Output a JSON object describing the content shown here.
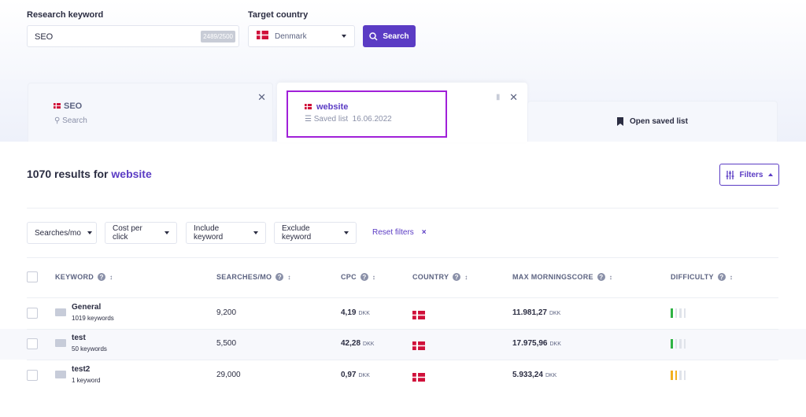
{
  "search": {
    "keyword_label": "Research keyword",
    "keyword_value": "SEO",
    "counter": "2489/2500",
    "country_label": "Target country",
    "country_value": "Denmark",
    "button": "Search"
  },
  "tabs": [
    {
      "title": "SEO",
      "subtitle": "Search"
    },
    {
      "title": "website",
      "subtitle": "Saved list",
      "date": "16.06.2022"
    },
    {
      "title": "Open saved list"
    }
  ],
  "results": {
    "count": "1070 results for",
    "term": "website",
    "filters_button": "Filters"
  },
  "filters": [
    "Searches/mo",
    "Cost per click",
    "Include keyword",
    "Exclude keyword"
  ],
  "reset_filters": "Reset filters",
  "table": {
    "headers": [
      "KEYWORD",
      "SEARCHES/MO",
      "CPC",
      "COUNTRY",
      "MAX MORNINGSCORE",
      "DIFFICULTY"
    ],
    "rows": [
      {
        "name": "General",
        "count": "1019 keywords",
        "searches": "9,200",
        "cpc": "4,19",
        "cpc_unit": "DKK",
        "score": "11.981,27",
        "score_unit": "DKK",
        "difficulty": 1,
        "difficulty_color": "#2fb344"
      },
      {
        "name": "test",
        "count": "50 keywords",
        "searches": "5,500",
        "cpc": "42,28",
        "cpc_unit": "DKK",
        "score": "17.975,96",
        "score_unit": "DKK",
        "difficulty": 1,
        "difficulty_color": "#2fb344"
      },
      {
        "name": "test2",
        "count": "1 keyword",
        "searches": "29,000",
        "cpc": "0,97",
        "cpc_unit": "DKK",
        "score": "5.933,24",
        "score_unit": "DKK",
        "difficulty": 2,
        "difficulty_color": "#f2b01e"
      }
    ]
  }
}
